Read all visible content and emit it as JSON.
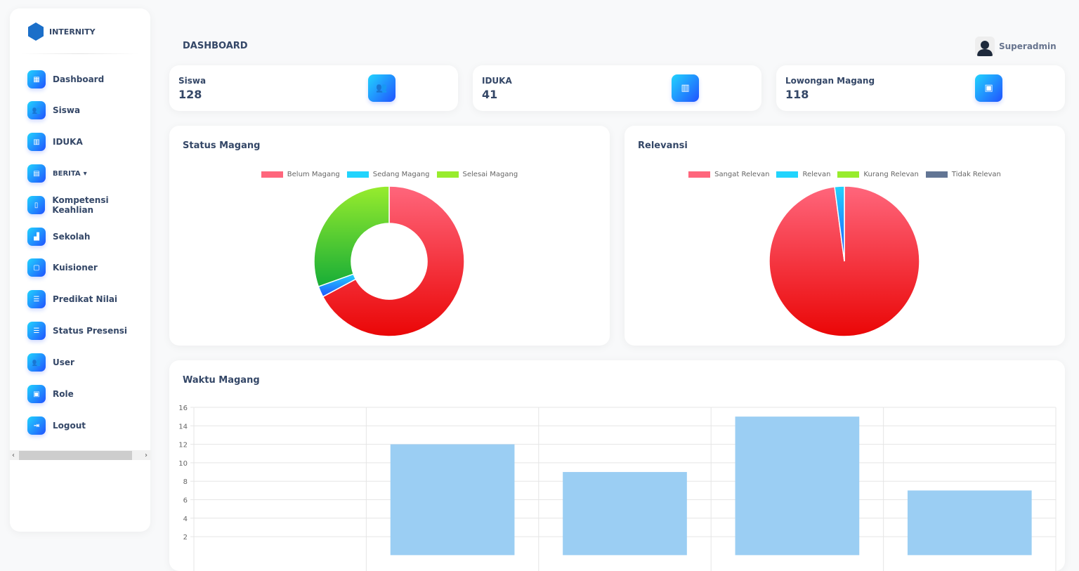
{
  "brand": "INTERNITY",
  "sidebar": {
    "items": [
      {
        "label": "Dashboard",
        "icon": "dashboard-icon",
        "g": "▦"
      },
      {
        "label": "Siswa",
        "icon": "users-icon",
        "g": "👥"
      },
      {
        "label": "IDUKA",
        "icon": "building-icon",
        "g": "▥"
      },
      {
        "label": "BERITA",
        "icon": "news-icon",
        "g": "▤",
        "dropdown": "▾"
      },
      {
        "label": "Kompetensi Keahlian",
        "icon": "book-icon",
        "g": "▯"
      },
      {
        "label": "Sekolah",
        "icon": "school-icon",
        "g": "▟"
      },
      {
        "label": "Kuisioner",
        "icon": "chat-icon",
        "g": "▢"
      },
      {
        "label": "Predikat Nilai",
        "icon": "list-icon",
        "g": "☰"
      },
      {
        "label": "Status Presensi",
        "icon": "list-icon",
        "g": "☰"
      },
      {
        "label": "User",
        "icon": "users-icon",
        "g": "👥"
      },
      {
        "label": "Role",
        "icon": "id-card-icon",
        "g": "▣"
      },
      {
        "label": "Logout",
        "icon": "logout-icon",
        "g": "⇥"
      }
    ],
    "scroll_left": "‹",
    "scroll_right": "›"
  },
  "header": {
    "title": "DASHBOARD",
    "user": "Superadmin"
  },
  "stats": [
    {
      "label": "Siswa",
      "value": "128",
      "icon": "users-icon",
      "g": "👥"
    },
    {
      "label": "IDUKA",
      "value": "41",
      "icon": "building-icon",
      "g": "▥"
    },
    {
      "label": "Lowongan Magang",
      "value": "118",
      "icon": "presentation-icon",
      "g": "▣"
    }
  ],
  "chart_data": [
    {
      "type": "pie",
      "variant": "doughnut",
      "title": "Status Magang",
      "labels": [
        "Belum Magang",
        "Sedang Magang",
        "Selesai Magang"
      ],
      "values": [
        86,
        3,
        39
      ],
      "colors": [
        "#ff667c",
        "#21d4fd",
        "#98ec2d"
      ]
    },
    {
      "type": "pie",
      "title": "Relevansi",
      "labels": [
        "Sangat Relevan",
        "Relevan",
        "Kurang Relevan",
        "Tidak Relevan"
      ],
      "values": [
        47,
        1,
        0,
        0
      ],
      "colors": [
        "#ff667c",
        "#21d4fd",
        "#98ec2d",
        "#627594"
      ]
    },
    {
      "type": "bar",
      "title": "Waktu Magang",
      "categories": [
        "",
        "",
        "",
        "",
        ""
      ],
      "values": [
        0,
        12,
        9,
        15,
        7
      ],
      "ylim": [
        0,
        16
      ],
      "yticks": [
        "2",
        "4",
        "6",
        "8",
        "10",
        "12",
        "14",
        "16"
      ],
      "color": "#9bcef3"
    }
  ]
}
